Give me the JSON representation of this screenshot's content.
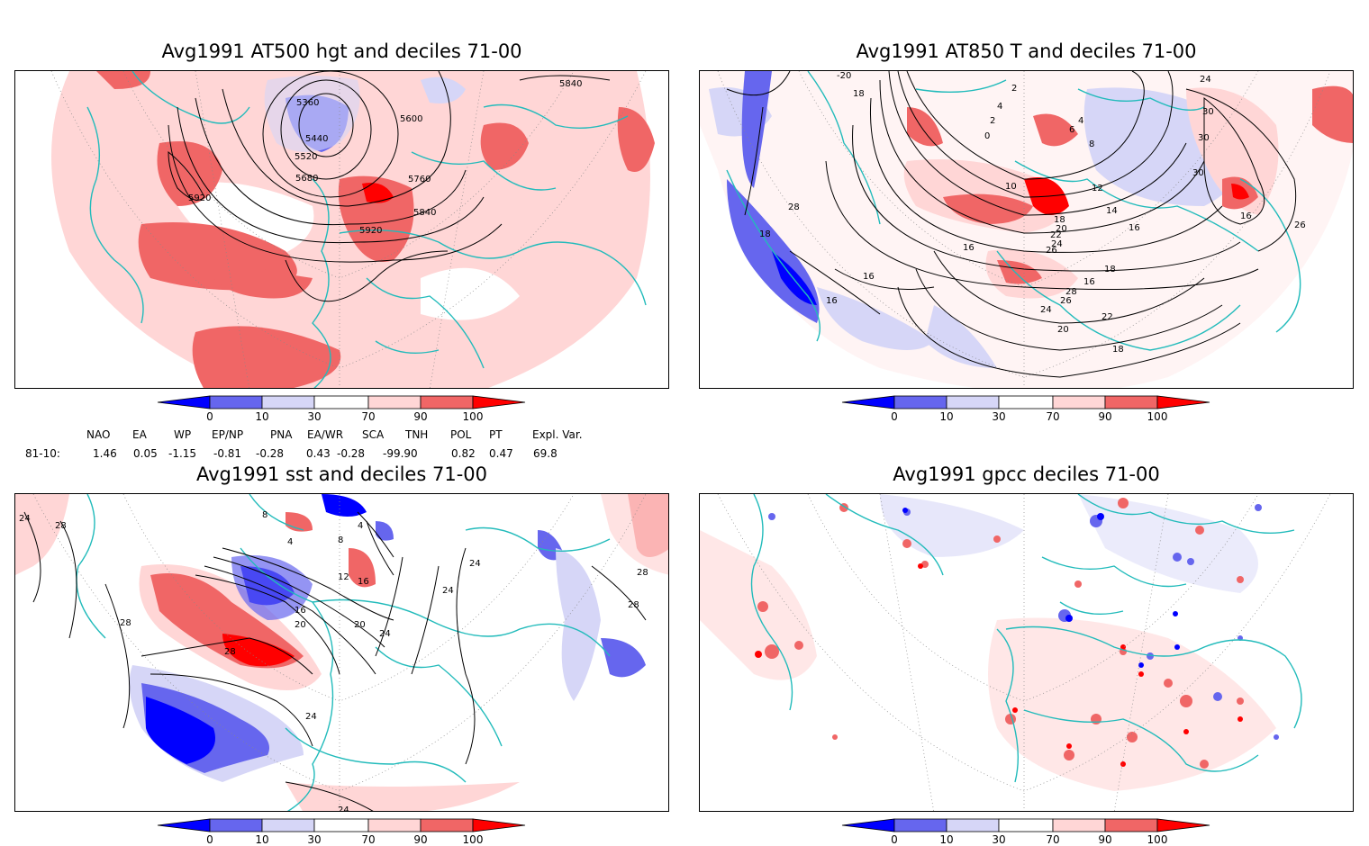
{
  "panels": {
    "tl": {
      "title": "Avg1991 AT500 hgt and deciles 71-00",
      "contour_labels": [
        "5360",
        "5440",
        "5520",
        "5600",
        "5680",
        "5760",
        "5840",
        "5920",
        "5920",
        "5840"
      ]
    },
    "tr": {
      "title": "Avg1991 AT850 T and deciles 71-00",
      "contour_labels": [
        "-20",
        "18",
        "2",
        "4",
        "2",
        "4",
        "6",
        "0",
        "8",
        "24",
        "30",
        "30",
        "30",
        "10",
        "12",
        "14",
        "16",
        "18",
        "20",
        "22",
        "24",
        "26",
        "28",
        "18",
        "16",
        "18",
        "16",
        "26",
        "16",
        "28",
        "26",
        "24",
        "22",
        "20",
        "18",
        "16",
        "16"
      ]
    },
    "bl": {
      "title": "Avg1991 sst and deciles 71-00",
      "contour_labels": [
        "24",
        "28",
        "28",
        "28",
        "8",
        "4",
        "4",
        "8",
        "12",
        "16",
        "16",
        "20",
        "20",
        "24",
        "28",
        "24",
        "24",
        "24",
        "28",
        "24"
      ]
    },
    "br": {
      "title": "Avg1991 gpcc deciles 71-00"
    }
  },
  "colorbar": {
    "ticks": [
      "0",
      "10",
      "30",
      "70",
      "90",
      "100"
    ],
    "colors": [
      "#0000ff",
      "#6666ee",
      "#d6d6f7",
      "#ffffff",
      "#ffd6d6",
      "#f06666",
      "#ff0000"
    ]
  },
  "indices": {
    "headers": [
      "NAO",
      "EA",
      "WP",
      "EP/NP",
      "PNA",
      "EA/WR",
      "SCA",
      "TNH",
      "POL",
      "PT",
      "Expl. Var."
    ],
    "row_label": "81-10:",
    "values": [
      "1.46",
      "0.05",
      "-1.15",
      "-0.81",
      "-0.28",
      "0.43",
      "-0.28",
      "-99.90",
      "0.82",
      "0.47",
      "69.8"
    ]
  },
  "colors": {
    "coast": "#22bbbb",
    "frame": "#000000",
    "contour": "#000000"
  }
}
